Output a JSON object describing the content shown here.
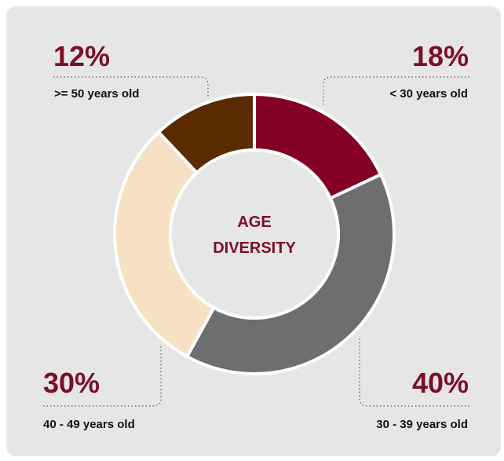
{
  "chart_data": {
    "type": "pie",
    "title_lines": [
      "AGE",
      "DIVERSITY"
    ],
    "categories": [
      "< 30 years old",
      "30 - 39 years old",
      "40 - 49 years old",
      ">= 50 years old"
    ],
    "values": [
      18,
      40,
      30,
      12
    ],
    "value_labels": [
      "18%",
      "40%",
      "30%",
      "12%"
    ],
    "colors": [
      "#840027",
      "#6e6e70",
      "#f7e1c4",
      "#5a2a00"
    ],
    "style": "donut",
    "background_color": "#e6e6e7",
    "start_angle_deg": 0,
    "direction": "clockwise"
  }
}
